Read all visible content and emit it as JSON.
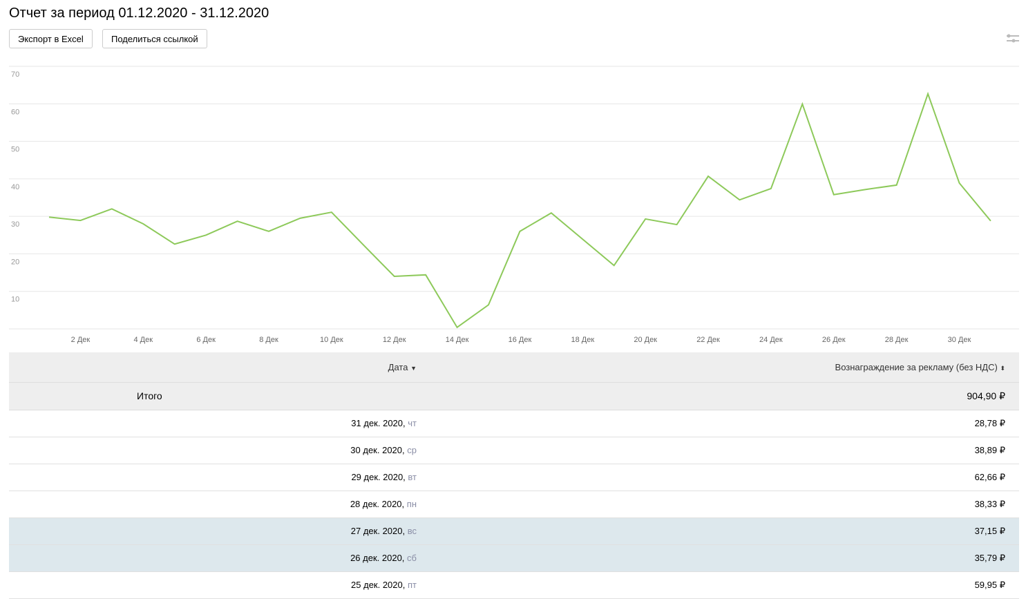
{
  "title": "Отчет за период 01.12.2020 - 31.12.2020",
  "toolbar": {
    "export_label": "Экспорт в Excel",
    "share_label": "Поделиться ссылкой"
  },
  "chart_data": {
    "type": "line",
    "color": "#8dc95a",
    "ylim": [
      0,
      70
    ],
    "yticks": [
      10,
      20,
      30,
      40,
      50,
      60,
      70
    ],
    "xtick_labels": [
      "2 Дек",
      "4 Дек",
      "6 Дек",
      "8 Дек",
      "10 Дек",
      "12 Дек",
      "14 Дек",
      "16 Дек",
      "18 Дек",
      "20 Дек",
      "22 Дек",
      "24 Дек",
      "26 Дек",
      "28 Дек",
      "30 Дек"
    ],
    "xtick_days": [
      2,
      4,
      6,
      8,
      10,
      12,
      14,
      16,
      18,
      20,
      22,
      24,
      26,
      28,
      30
    ],
    "x": [
      1,
      2,
      3,
      4,
      5,
      6,
      7,
      8,
      9,
      10,
      11,
      12,
      13,
      14,
      15,
      16,
      17,
      18,
      19,
      20,
      21,
      22,
      23,
      24,
      25,
      26,
      27,
      28,
      29,
      30,
      31
    ],
    "values": [
      29.8,
      28.9,
      32.0,
      28.0,
      22.6,
      25.0,
      28.7,
      26.0,
      29.5,
      31.1,
      22.5,
      14.0,
      14.4,
      0.4,
      6.4,
      26.0,
      30.9,
      23.9,
      16.9,
      29.3,
      27.8,
      40.7,
      34.4,
      37.4,
      59.95,
      35.79,
      37.15,
      38.33,
      62.66,
      38.89,
      28.78
    ],
    "grid": true
  },
  "table": {
    "headers": {
      "date": "Дата",
      "reward": "Вознаграждение за рекламу (без НДС)"
    },
    "total": {
      "label": "Итого",
      "value": "904,90 ₽"
    },
    "rows": [
      {
        "date": "31 дек. 2020,",
        "dow": "чт",
        "value": "28,78 ₽",
        "weekend": false
      },
      {
        "date": "30 дек. 2020,",
        "dow": "ср",
        "value": "38,89 ₽",
        "weekend": false
      },
      {
        "date": "29 дек. 2020,",
        "dow": "вт",
        "value": "62,66 ₽",
        "weekend": false
      },
      {
        "date": "28 дек. 2020,",
        "dow": "пн",
        "value": "38,33 ₽",
        "weekend": false
      },
      {
        "date": "27 дек. 2020,",
        "dow": "вс",
        "value": "37,15 ₽",
        "weekend": true
      },
      {
        "date": "26 дек. 2020,",
        "dow": "сб",
        "value": "35,79 ₽",
        "weekend": true
      },
      {
        "date": "25 дек. 2020,",
        "dow": "пт",
        "value": "59,95 ₽",
        "weekend": false
      }
    ]
  }
}
